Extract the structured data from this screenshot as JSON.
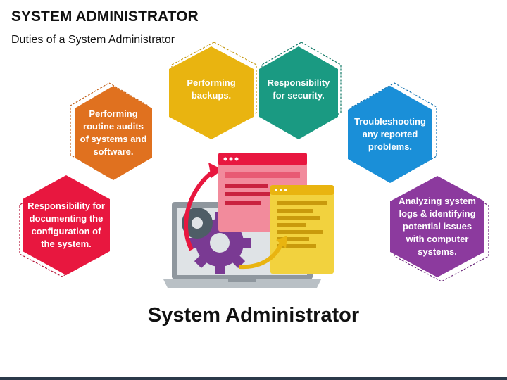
{
  "header": {
    "title": "SYSTEM ADMINISTRATOR",
    "subtitle": "Duties of a System Administrator"
  },
  "center_label": "System Administrator",
  "duties": [
    {
      "id": "documenting",
      "lines": [
        "Responsibility for",
        "documenting the",
        "configuration of",
        "the system."
      ],
      "color": "#e8173f"
    },
    {
      "id": "audits",
      "lines": [
        "Performing",
        "routine audits",
        "of systems and",
        "software."
      ],
      "color": "#e0711f"
    },
    {
      "id": "backups",
      "lines": [
        "Performing",
        "backups."
      ],
      "color": "#e9b410"
    },
    {
      "id": "security",
      "lines": [
        "Responsibility",
        "for security."
      ],
      "color": "#1a9a82"
    },
    {
      "id": "troubleshooting",
      "lines": [
        "Troubleshooting",
        "any reported",
        "problems."
      ],
      "color": "#1a8fd8"
    },
    {
      "id": "logs",
      "lines": [
        "Analyzing system",
        "logs & identifying",
        "potential issues",
        "with computer",
        "systems."
      ],
      "color": "#8c3a9e"
    }
  ],
  "icons": [
    "laptop-icon",
    "gear-icon",
    "browser-window-icon",
    "document-window-icon",
    "curved-arrow-icon"
  ]
}
